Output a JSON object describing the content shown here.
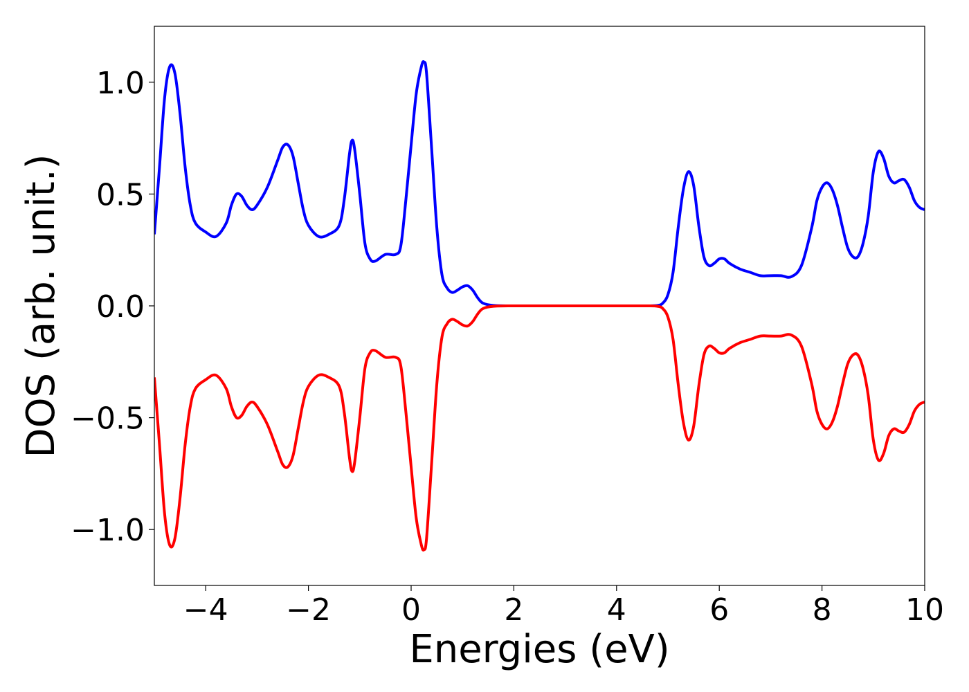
{
  "chart_data": {
    "type": "line",
    "title": "",
    "xlabel": "Energies (eV)",
    "ylabel": "DOS (arb. unit.)",
    "xlim": [
      -5,
      10
    ],
    "ylim": [
      -1.25,
      1.25
    ],
    "xticks": [
      -4,
      -2,
      0,
      2,
      4,
      6,
      8,
      10
    ],
    "xtick_labels": [
      "−4",
      "−2",
      "0",
      "2",
      "4",
      "6",
      "8",
      "10"
    ],
    "yticks": [
      1.0,
      0.5,
      0.0,
      -0.5,
      -1.0
    ],
    "ytick_labels": [
      "1.0",
      "0.5",
      "0.0",
      "−0.5",
      "−1.0"
    ],
    "grid": false,
    "legend": "none",
    "series": [
      {
        "color": "#0000ff",
        "points": [
          [
            -5.0,
            0.32
          ],
          [
            -4.9,
            0.62
          ],
          [
            -4.8,
            0.93
          ],
          [
            -4.7,
            1.07
          ],
          [
            -4.6,
            1.04
          ],
          [
            -4.5,
            0.86
          ],
          [
            -4.4,
            0.62
          ],
          [
            -4.3,
            0.45
          ],
          [
            -4.2,
            0.37
          ],
          [
            -4.0,
            0.33
          ],
          [
            -3.8,
            0.31
          ],
          [
            -3.6,
            0.37
          ],
          [
            -3.5,
            0.45
          ],
          [
            -3.4,
            0.5
          ],
          [
            -3.3,
            0.49
          ],
          [
            -3.2,
            0.45
          ],
          [
            -3.1,
            0.43
          ],
          [
            -3.0,
            0.45
          ],
          [
            -2.8,
            0.53
          ],
          [
            -2.6,
            0.65
          ],
          [
            -2.5,
            0.71
          ],
          [
            -2.4,
            0.72
          ],
          [
            -2.3,
            0.67
          ],
          [
            -2.2,
            0.55
          ],
          [
            -2.1,
            0.43
          ],
          [
            -2.0,
            0.36
          ],
          [
            -1.8,
            0.31
          ],
          [
            -1.6,
            0.32
          ],
          [
            -1.4,
            0.36
          ],
          [
            -1.3,
            0.48
          ],
          [
            -1.2,
            0.68
          ],
          [
            -1.15,
            0.74
          ],
          [
            -1.1,
            0.7
          ],
          [
            -1.0,
            0.5
          ],
          [
            -0.9,
            0.28
          ],
          [
            -0.8,
            0.21
          ],
          [
            -0.7,
            0.2
          ],
          [
            -0.5,
            0.23
          ],
          [
            -0.3,
            0.23
          ],
          [
            -0.2,
            0.27
          ],
          [
            -0.1,
            0.48
          ],
          [
            0.0,
            0.72
          ],
          [
            0.1,
            0.95
          ],
          [
            0.2,
            1.07
          ],
          [
            0.25,
            1.09
          ],
          [
            0.3,
            1.04
          ],
          [
            0.4,
            0.7
          ],
          [
            0.5,
            0.35
          ],
          [
            0.6,
            0.14
          ],
          [
            0.7,
            0.08
          ],
          [
            0.8,
            0.06
          ],
          [
            0.9,
            0.07
          ],
          [
            1.0,
            0.085
          ],
          [
            1.1,
            0.09
          ],
          [
            1.2,
            0.07
          ],
          [
            1.3,
            0.035
          ],
          [
            1.4,
            0.012
          ],
          [
            1.6,
            0.002
          ],
          [
            2.0,
            0.0
          ],
          [
            3.0,
            0.0
          ],
          [
            4.0,
            0.0
          ],
          [
            4.6,
            0.0
          ],
          [
            4.8,
            0.002
          ],
          [
            4.9,
            0.012
          ],
          [
            5.0,
            0.05
          ],
          [
            5.1,
            0.15
          ],
          [
            5.2,
            0.35
          ],
          [
            5.3,
            0.52
          ],
          [
            5.4,
            0.6
          ],
          [
            5.5,
            0.54
          ],
          [
            5.6,
            0.36
          ],
          [
            5.7,
            0.22
          ],
          [
            5.8,
            0.18
          ],
          [
            5.9,
            0.19
          ],
          [
            6.0,
            0.21
          ],
          [
            6.1,
            0.21
          ],
          [
            6.2,
            0.19
          ],
          [
            6.4,
            0.165
          ],
          [
            6.6,
            0.15
          ],
          [
            6.8,
            0.135
          ],
          [
            7.0,
            0.135
          ],
          [
            7.2,
            0.135
          ],
          [
            7.4,
            0.13
          ],
          [
            7.6,
            0.18
          ],
          [
            7.8,
            0.35
          ],
          [
            7.9,
            0.47
          ],
          [
            8.0,
            0.53
          ],
          [
            8.1,
            0.55
          ],
          [
            8.2,
            0.52
          ],
          [
            8.3,
            0.45
          ],
          [
            8.4,
            0.35
          ],
          [
            8.5,
            0.26
          ],
          [
            8.6,
            0.22
          ],
          [
            8.7,
            0.22
          ],
          [
            8.8,
            0.28
          ],
          [
            8.9,
            0.4
          ],
          [
            9.0,
            0.6
          ],
          [
            9.1,
            0.69
          ],
          [
            9.2,
            0.66
          ],
          [
            9.3,
            0.58
          ],
          [
            9.4,
            0.55
          ],
          [
            9.5,
            0.56
          ],
          [
            9.6,
            0.565
          ],
          [
            9.7,
            0.53
          ],
          [
            9.8,
            0.47
          ],
          [
            9.9,
            0.44
          ],
          [
            10.0,
            0.43
          ]
        ]
      },
      {
        "color": "#ff0000",
        "points": [
          [
            -5.0,
            -0.32
          ],
          [
            -4.9,
            -0.62
          ],
          [
            -4.8,
            -0.93
          ],
          [
            -4.7,
            -1.07
          ],
          [
            -4.6,
            -1.04
          ],
          [
            -4.5,
            -0.86
          ],
          [
            -4.4,
            -0.62
          ],
          [
            -4.3,
            -0.45
          ],
          [
            -4.2,
            -0.37
          ],
          [
            -4.0,
            -0.33
          ],
          [
            -3.8,
            -0.31
          ],
          [
            -3.6,
            -0.37
          ],
          [
            -3.5,
            -0.45
          ],
          [
            -3.4,
            -0.5
          ],
          [
            -3.3,
            -0.49
          ],
          [
            -3.2,
            -0.45
          ],
          [
            -3.1,
            -0.43
          ],
          [
            -3.0,
            -0.45
          ],
          [
            -2.8,
            -0.53
          ],
          [
            -2.6,
            -0.65
          ],
          [
            -2.5,
            -0.71
          ],
          [
            -2.4,
            -0.72
          ],
          [
            -2.3,
            -0.67
          ],
          [
            -2.2,
            -0.55
          ],
          [
            -2.1,
            -0.43
          ],
          [
            -2.0,
            -0.36
          ],
          [
            -1.8,
            -0.31
          ],
          [
            -1.6,
            -0.32
          ],
          [
            -1.4,
            -0.36
          ],
          [
            -1.3,
            -0.48
          ],
          [
            -1.2,
            -0.68
          ],
          [
            -1.15,
            -0.74
          ],
          [
            -1.1,
            -0.7
          ],
          [
            -1.0,
            -0.5
          ],
          [
            -0.9,
            -0.28
          ],
          [
            -0.8,
            -0.21
          ],
          [
            -0.7,
            -0.2
          ],
          [
            -0.5,
            -0.23
          ],
          [
            -0.3,
            -0.23
          ],
          [
            -0.2,
            -0.27
          ],
          [
            -0.1,
            -0.48
          ],
          [
            0.0,
            -0.72
          ],
          [
            0.1,
            -0.95
          ],
          [
            0.2,
            -1.07
          ],
          [
            0.25,
            -1.09
          ],
          [
            0.3,
            -1.04
          ],
          [
            0.4,
            -0.7
          ],
          [
            0.5,
            -0.35
          ],
          [
            0.6,
            -0.14
          ],
          [
            0.7,
            -0.08
          ],
          [
            0.8,
            -0.06
          ],
          [
            0.9,
            -0.07
          ],
          [
            1.0,
            -0.085
          ],
          [
            1.1,
            -0.09
          ],
          [
            1.2,
            -0.07
          ],
          [
            1.3,
            -0.035
          ],
          [
            1.4,
            -0.012
          ],
          [
            1.6,
            -0.002
          ],
          [
            2.0,
            0.0
          ],
          [
            3.0,
            0.0
          ],
          [
            4.0,
            0.0
          ],
          [
            4.6,
            0.0
          ],
          [
            4.8,
            -0.002
          ],
          [
            4.9,
            -0.012
          ],
          [
            5.0,
            -0.05
          ],
          [
            5.1,
            -0.15
          ],
          [
            5.2,
            -0.35
          ],
          [
            5.3,
            -0.52
          ],
          [
            5.4,
            -0.6
          ],
          [
            5.5,
            -0.54
          ],
          [
            5.6,
            -0.36
          ],
          [
            5.7,
            -0.22
          ],
          [
            5.8,
            -0.18
          ],
          [
            5.9,
            -0.19
          ],
          [
            6.0,
            -0.21
          ],
          [
            6.1,
            -0.21
          ],
          [
            6.2,
            -0.19
          ],
          [
            6.4,
            -0.165
          ],
          [
            6.6,
            -0.15
          ],
          [
            6.8,
            -0.135
          ],
          [
            7.0,
            -0.135
          ],
          [
            7.2,
            -0.135
          ],
          [
            7.4,
            -0.13
          ],
          [
            7.6,
            -0.18
          ],
          [
            7.8,
            -0.35
          ],
          [
            7.9,
            -0.47
          ],
          [
            8.0,
            -0.53
          ],
          [
            8.1,
            -0.55
          ],
          [
            8.2,
            -0.52
          ],
          [
            8.3,
            -0.45
          ],
          [
            8.4,
            -0.35
          ],
          [
            8.5,
            -0.26
          ],
          [
            8.6,
            -0.22
          ],
          [
            8.7,
            -0.22
          ],
          [
            8.8,
            -0.28
          ],
          [
            8.9,
            -0.4
          ],
          [
            9.0,
            -0.6
          ],
          [
            9.1,
            -0.69
          ],
          [
            9.2,
            -0.66
          ],
          [
            9.3,
            -0.58
          ],
          [
            9.4,
            -0.55
          ],
          [
            9.5,
            -0.56
          ],
          [
            9.6,
            -0.565
          ],
          [
            9.7,
            -0.53
          ],
          [
            9.8,
            -0.47
          ],
          [
            9.9,
            -0.44
          ],
          [
            10.0,
            -0.43
          ]
        ]
      }
    ]
  }
}
